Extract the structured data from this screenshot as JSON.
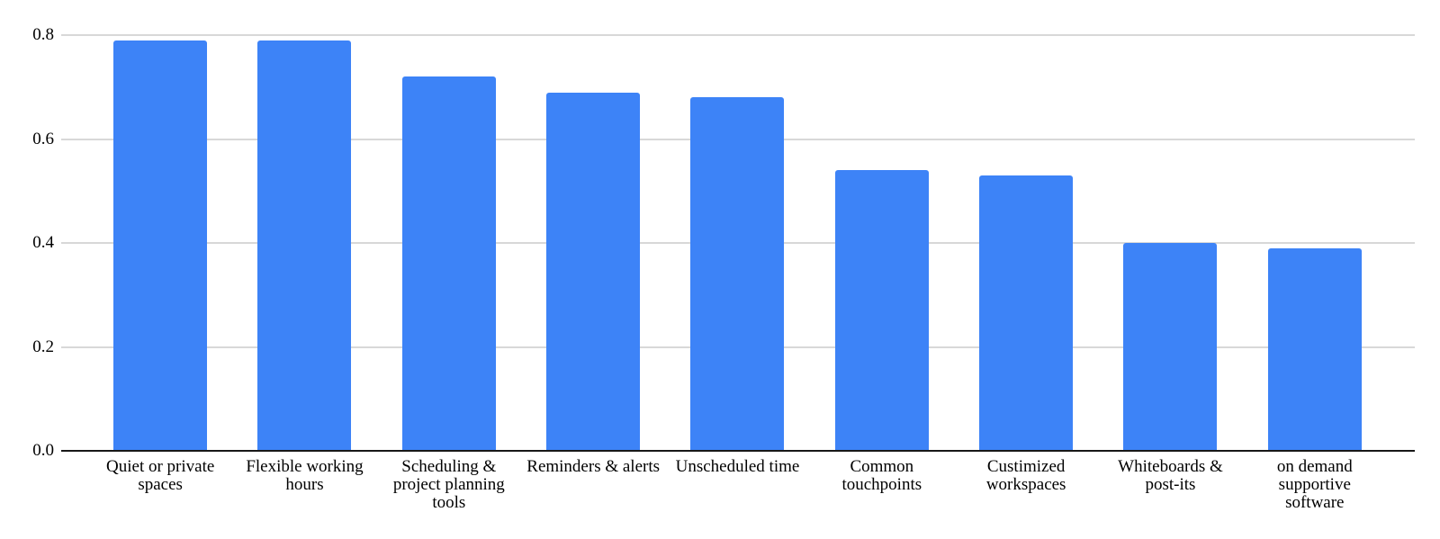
{
  "chart_data": {
    "type": "bar",
    "title": "",
    "xlabel": "",
    "ylabel": "",
    "categories": [
      [
        "Quiet or private",
        "spaces"
      ],
      [
        "Flexible working",
        "hours"
      ],
      [
        "Scheduling &",
        "project planning",
        "tools"
      ],
      [
        "Reminders & alerts"
      ],
      [
        "Unscheduled time"
      ],
      [
        "Common",
        "touchpoints"
      ],
      [
        "Custimized",
        "workspaces"
      ],
      [
        "Whiteboards &",
        "post-its"
      ],
      [
        "on demand",
        "supportive",
        "software"
      ]
    ],
    "values": [
      0.79,
      0.79,
      0.72,
      0.69,
      0.68,
      0.54,
      0.53,
      0.4,
      0.39
    ],
    "ylim": [
      0,
      0.8
    ],
    "yticks": [
      0,
      0.2,
      0.4,
      0.6,
      0.8
    ],
    "ytick_labels": [
      "0.0",
      "0.2",
      "0.4",
      "0.6",
      "0.8"
    ],
    "grid": true,
    "legend": "none",
    "bar_color": "#3d83f7",
    "gridline_color": "#d8d8d8",
    "axis_line_color": "#171717",
    "text_color": "#000000",
    "background_color": "#ffffff"
  }
}
